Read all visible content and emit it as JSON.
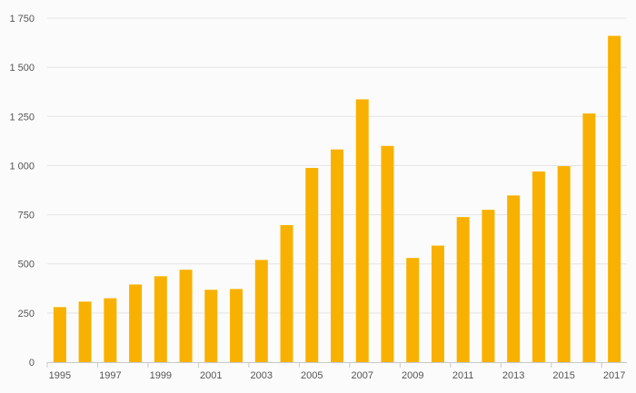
{
  "chart_data": {
    "type": "bar",
    "title": "",
    "xlabel": "",
    "ylabel": "",
    "categories": [
      "1995",
      "1996",
      "1997",
      "1998",
      "1999",
      "2000",
      "2001",
      "2002",
      "2003",
      "2004",
      "2005",
      "2006",
      "2007",
      "2008",
      "2009",
      "2010",
      "2011",
      "2012",
      "2013",
      "2014",
      "2015",
      "2016",
      "2017"
    ],
    "x_tick_labels": [
      "1995",
      "1997",
      "1999",
      "2001",
      "2003",
      "2005",
      "2007",
      "2009",
      "2011",
      "2013",
      "2015",
      "2017"
    ],
    "y_tick_labels": [
      "0",
      "250",
      "500",
      "750",
      "1 000",
      "1 250",
      "1 500",
      "1 750"
    ],
    "y_ticks": [
      0,
      250,
      500,
      750,
      1000,
      1250,
      1500,
      1750
    ],
    "values": [
      280,
      308,
      325,
      395,
      437,
      470,
      368,
      372,
      520,
      697,
      988,
      1082,
      1337,
      1100,
      530,
      593,
      738,
      775,
      848,
      970,
      997,
      1265,
      1660
    ],
    "ylim": [
      0,
      1750
    ],
    "grid": true,
    "legend": "none",
    "bar_color": "#f8b100"
  }
}
